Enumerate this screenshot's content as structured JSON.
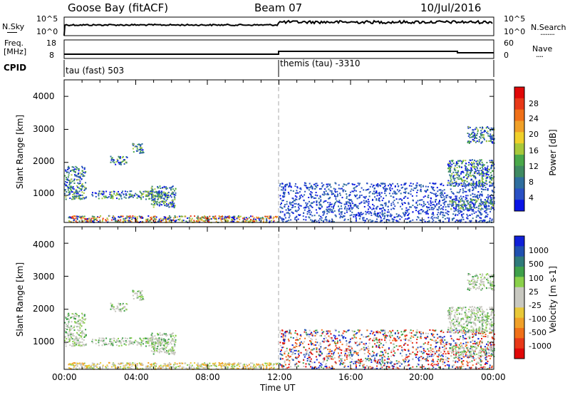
{
  "header": {
    "station": "Goose Bay (fitACF)",
    "beam": "Beam 07",
    "date": "10/Jul/2016"
  },
  "noise_panel": {
    "left_label": "N.Sky",
    "right_label": "N.Search",
    "right_legend": "........",
    "left_ticks": [
      "10^5",
      "10^0"
    ],
    "right_ticks": [
      "10^5",
      "10^0"
    ]
  },
  "freq_panel": {
    "left_label_1": "Freq.",
    "left_label_2": "[MHz]",
    "right_label": "Nave",
    "right_legend": "....",
    "left_ticks": [
      "18",
      "8"
    ],
    "right_ticks": [
      "60",
      "0"
    ]
  },
  "cpid": {
    "label": "CPID",
    "segments": [
      "tau (fast) 503",
      "themis (tau) -3310"
    ]
  },
  "power_panel": {
    "ylabel": "Slant Range [km]",
    "yticks": [
      "4000",
      "3000",
      "2000",
      "1000"
    ],
    "colorbar_label": "Power [dB]",
    "colorbar_ticks": [
      "28",
      "24",
      "20",
      "16",
      "12",
      "8",
      "4"
    ],
    "colors": [
      "#0a14e6",
      "#2a50c4",
      "#2f6e9e",
      "#3f8a62",
      "#4aa84a",
      "#a8c83a",
      "#f0d02a",
      "#f0a028",
      "#f07018",
      "#e83818",
      "#e00808"
    ]
  },
  "velocity_panel": {
    "ylabel": "Slant Range [km]",
    "yticks": [
      "4000",
      "3000",
      "2000",
      "1000"
    ],
    "colorbar_label": "Velocity [m s-1]",
    "colorbar_ticks": [
      "1000",
      "500",
      "100",
      "25",
      "-25",
      "-100",
      "-500",
      "-1000"
    ],
    "colors": [
      "#1020d8",
      "#2050b0",
      "#2f7a7a",
      "#3fa04a",
      "#8ad04a",
      "#c8c8c0",
      "#c8c8c0",
      "#e8c838",
      "#f0a028",
      "#f07018",
      "#e83818",
      "#e00808"
    ]
  },
  "xaxis": {
    "label": "Time UT",
    "ticks": [
      "00:00",
      "04:00",
      "08:00",
      "12:00",
      "16:00",
      "20:00",
      "00:00"
    ]
  },
  "chart_data": {
    "type": "heatmap",
    "x_range_hours": [
      0,
      24
    ],
    "y_range_km": [
      180,
      4500
    ],
    "mode_change_hour": 12,
    "features": [
      {
        "name": "ground/near-range scatter",
        "t": [
          0.2,
          11.9
        ],
        "r": [
          200,
          400
        ]
      },
      {
        "name": "F-region patch",
        "t": [
          1.5,
          5.8
        ],
        "r": [
          900,
          1150
        ]
      },
      {
        "name": "F-region patch",
        "t": [
          4.8,
          6.2
        ],
        "r": [
          650,
          1300
        ]
      },
      {
        "name": "F-region patch",
        "t": [
          0,
          1.2
        ],
        "r": [
          900,
          1900
        ]
      },
      {
        "name": "F-region patch",
        "t": [
          2.5,
          3.5
        ],
        "r": [
          1950,
          2200
        ]
      },
      {
        "name": "F-region patch",
        "t": [
          3.8,
          4.4
        ],
        "r": [
          2300,
          2600
        ]
      },
      {
        "name": "dense scatter",
        "t": [
          12.0,
          24.0
        ],
        "r": [
          200,
          1400
        ]
      },
      {
        "name": "late band",
        "t": [
          21.4,
          24.0
        ],
        "r": [
          1300,
          2100
        ]
      },
      {
        "name": "late band",
        "t": [
          22.5,
          24.0
        ],
        "r": [
          2600,
          3100
        ]
      },
      {
        "name": "late echoes",
        "t": [
          21.5,
          24.0
        ],
        "r": [
          600,
          900
        ]
      }
    ]
  }
}
